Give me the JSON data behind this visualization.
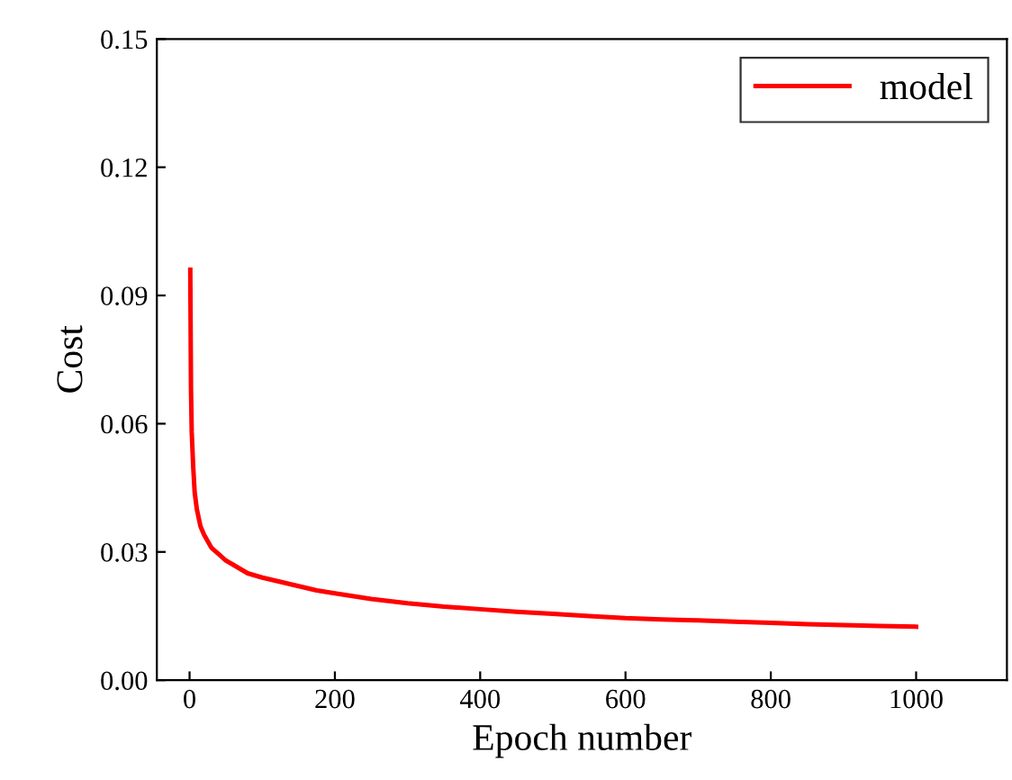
{
  "chart_data": {
    "type": "line",
    "xlabel": "Epoch number",
    "ylabel": "Cost",
    "series": [
      {
        "name": "model",
        "color": "#ff0000",
        "x": [
          1,
          2,
          3,
          5,
          7,
          10,
          15,
          20,
          30,
          40,
          50,
          60,
          80,
          100,
          125,
          150,
          175,
          200,
          250,
          300,
          350,
          400,
          450,
          500,
          550,
          600,
          650,
          700,
          750,
          800,
          850,
          900,
          950,
          1000
        ],
        "values": [
          0.096,
          0.068,
          0.058,
          0.05,
          0.044,
          0.04,
          0.036,
          0.034,
          0.031,
          0.0295,
          0.028,
          0.027,
          0.025,
          0.024,
          0.023,
          0.022,
          0.021,
          0.0203,
          0.019,
          0.018,
          0.0172,
          0.0166,
          0.016,
          0.0155,
          0.015,
          0.0145,
          0.0142,
          0.014,
          0.0137,
          0.0134,
          0.0131,
          0.0129,
          0.0127,
          0.0125
        ]
      }
    ],
    "xlim": [
      -45,
      1125
    ],
    "ylim": [
      0,
      0.15
    ],
    "xticks": [
      0,
      200,
      400,
      600,
      800,
      1000
    ],
    "yticks": [
      {
        "value": 0,
        "label": "0.00"
      },
      {
        "value": 0.03,
        "label": "0.03"
      },
      {
        "value": 0.06,
        "label": "0.06"
      },
      {
        "value": 0.09,
        "label": "0.09"
      },
      {
        "value": 0.12,
        "label": "0.12"
      },
      {
        "value": 0.15,
        "label": "0.15"
      }
    ],
    "legend": "top right",
    "grid": false,
    "marker": "none",
    "line_style": "solid"
  }
}
